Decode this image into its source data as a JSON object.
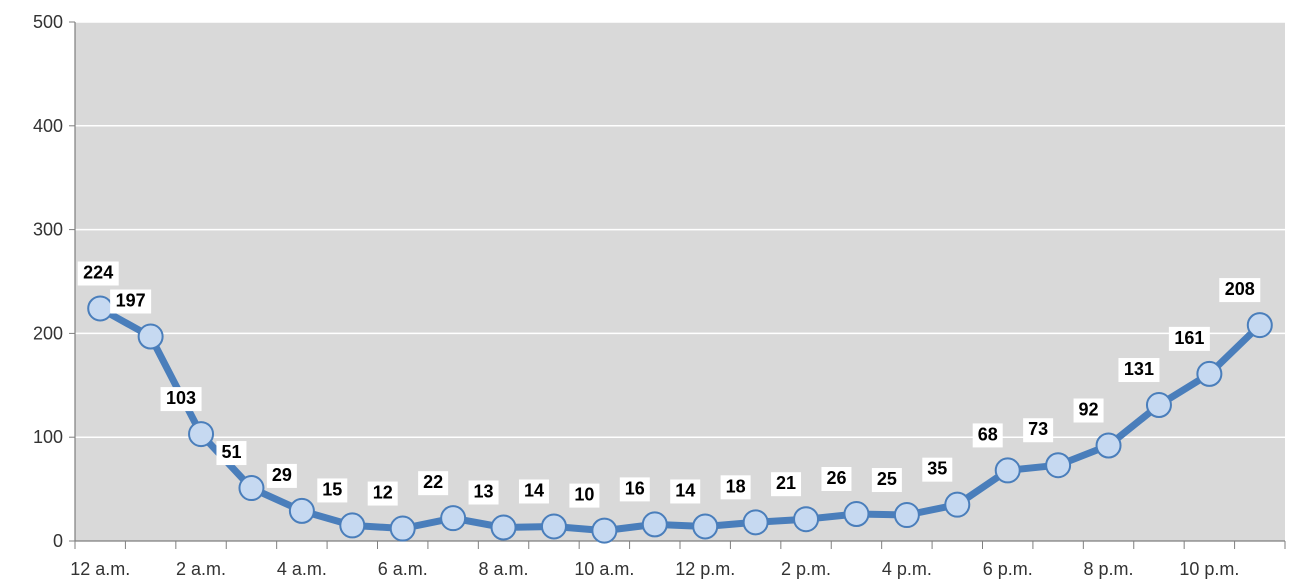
{
  "chart_data": {
    "type": "line",
    "title": "",
    "xlabel": "",
    "ylabel": "",
    "ylim": [
      0,
      500
    ],
    "yticks": [
      0,
      100,
      200,
      300,
      400,
      500
    ],
    "categories": [
      "12 a.m.",
      "1 a.m.",
      "2 a.m.",
      "3 a.m.",
      "4 a.m.",
      "5 a.m.",
      "6 a.m.",
      "7 a.m.",
      "8 a.m.",
      "9 a.m.",
      "10 a.m.",
      "11 a.m.",
      "12 p.m.",
      "1 p.m.",
      "2 p.m.",
      "3 p.m.",
      "4 p.m.",
      "5 p.m.",
      "6 p.m.",
      "7 p.m.",
      "8 p.m.",
      "9 p.m.",
      "10 p.m.",
      "11 p.m."
    ],
    "shown_tick_labels": [
      "12 a.m.",
      "2 a.m.",
      "4 a.m.",
      "6 a.m.",
      "8 a.m.",
      "10 a.m.",
      "12 p.m.",
      "2 p.m.",
      "4 p.m.",
      "6 p.m.",
      "8 p.m.",
      "10 p.m."
    ],
    "series": [
      {
        "values": [
          224,
          197,
          103,
          51,
          29,
          15,
          12,
          22,
          13,
          14,
          10,
          16,
          14,
          18,
          21,
          26,
          25,
          35,
          68,
          73,
          92,
          131,
          161,
          208
        ]
      }
    ],
    "grid": true,
    "legend": "none",
    "colors": {
      "plot_background": "#d9d9d9",
      "gridline": "#ffffff",
      "line": "#4a7ebb",
      "marker_fill": "#c6d9f1",
      "marker_stroke": "#4a7ebb"
    }
  }
}
